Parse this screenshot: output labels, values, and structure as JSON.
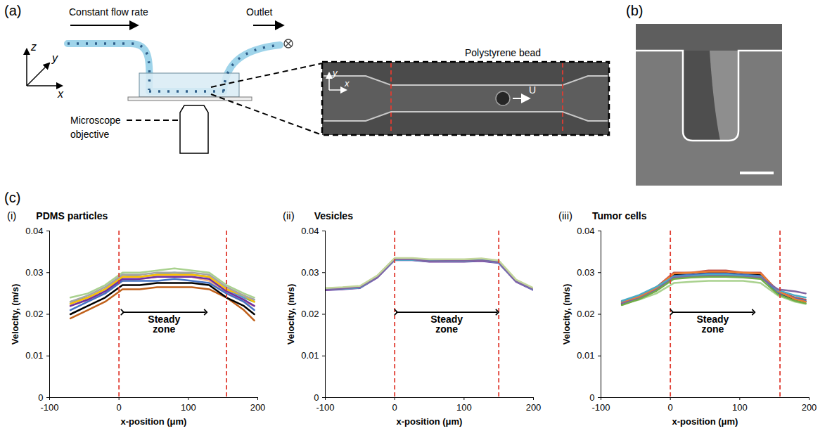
{
  "figure": {
    "a": {
      "letter": "(a)",
      "axis_labels": [
        "x",
        "y",
        "z"
      ],
      "inlet_label": "Constant flow rate",
      "outlet_label": "Outlet",
      "objective_label": "Microscope objective",
      "inset_label": "Polystyrene bead",
      "inset_axis_labels": [
        "x",
        "y"
      ],
      "velocity_label": "U"
    },
    "b": {
      "letter": "(b)"
    },
    "c": {
      "letter": "(c)"
    }
  },
  "chart_data": [
    {
      "type": "line",
      "panel_label": "(i)",
      "title": "PDMS particles",
      "xlabel": "x-position (μm)",
      "ylabel": "Velocity, (m/s)",
      "xlim": [
        -100,
        200
      ],
      "xticks": [
        -100,
        0,
        100,
        200
      ],
      "ylim": [
        0,
        0.04
      ],
      "yticks": [
        0,
        0.01,
        0.02,
        0.03,
        0.04
      ],
      "grid": false,
      "reference_lines": {
        "x": [
          0,
          155
        ],
        "color": "#e03c31",
        "line_style": "dashed"
      },
      "annotations": [
        {
          "text": "Steady zone",
          "x1": 5,
          "x2": 125,
          "y": 0.0205
        }
      ],
      "x": [
        -70,
        -45,
        -20,
        5,
        30,
        55,
        80,
        105,
        130,
        155,
        180,
        195
      ],
      "series": [
        {
          "color": "#c0601a",
          "values": [
            0.019,
            0.021,
            0.023,
            0.026,
            0.026,
            0.0265,
            0.0265,
            0.0265,
            0.026,
            0.024,
            0.021,
            0.0185
          ]
        },
        {
          "color": "#000000",
          "values": [
            0.02,
            0.022,
            0.024,
            0.027,
            0.027,
            0.0275,
            0.0275,
            0.0275,
            0.027,
            0.024,
            0.022,
            0.02
          ]
        },
        {
          "color": "#70ad47",
          "values": [
            0.023,
            0.024,
            0.026,
            0.029,
            0.029,
            0.0295,
            0.0295,
            0.0295,
            0.029,
            0.026,
            0.024,
            0.023
          ]
        },
        {
          "color": "#a9d18e",
          "values": [
            0.024,
            0.025,
            0.027,
            0.03,
            0.03,
            0.0305,
            0.031,
            0.0305,
            0.03,
            0.027,
            0.025,
            0.024
          ]
        },
        {
          "color": "#f4b183",
          "values": [
            0.022,
            0.0235,
            0.025,
            0.028,
            0.0285,
            0.029,
            0.029,
            0.029,
            0.028,
            0.025,
            0.023,
            0.022
          ]
        },
        {
          "color": "#5b9bd5",
          "values": [
            0.0225,
            0.024,
            0.026,
            0.0295,
            0.029,
            0.0295,
            0.03,
            0.0295,
            0.029,
            0.026,
            0.024,
            0.0235
          ]
        },
        {
          "color": "#4472c4",
          "values": [
            0.021,
            0.023,
            0.025,
            0.028,
            0.028,
            0.028,
            0.0285,
            0.028,
            0.0275,
            0.025,
            0.023,
            0.021
          ]
        },
        {
          "color": "#7030a0",
          "values": [
            0.022,
            0.0235,
            0.0255,
            0.0285,
            0.0285,
            0.029,
            0.029,
            0.029,
            0.0285,
            0.0255,
            0.0235,
            0.022
          ]
        },
        {
          "color": "#ffc000",
          "values": [
            0.0225,
            0.024,
            0.026,
            0.029,
            0.029,
            0.0295,
            0.0295,
            0.0295,
            0.029,
            0.026,
            0.0245,
            0.023
          ]
        },
        {
          "color": "#a5a5a5",
          "values": [
            0.023,
            0.0245,
            0.0265,
            0.0295,
            0.0295,
            0.03,
            0.03,
            0.03,
            0.0295,
            0.0265,
            0.0245,
            0.0235
          ]
        }
      ]
    },
    {
      "type": "line",
      "panel_label": "(ii)",
      "title": "Vesicles",
      "xlabel": "x-position (μm)",
      "ylabel": "Velocity, (m/s)",
      "xlim": [
        -100,
        200
      ],
      "xticks": [
        -100,
        0,
        100,
        200
      ],
      "ylim": [
        0,
        0.04
      ],
      "yticks": [
        0,
        0.01,
        0.02,
        0.03,
        0.04
      ],
      "grid": false,
      "reference_lines": {
        "x": [
          0,
          150
        ],
        "color": "#e03c31",
        "line_style": "dashed"
      },
      "annotations": [
        {
          "text": "Steady zone",
          "x1": 2,
          "x2": 148,
          "y": 0.0205
        }
      ],
      "x": [
        -100,
        -75,
        -50,
        -25,
        0,
        25,
        50,
        75,
        100,
        125,
        150,
        175,
        200
      ],
      "series": [
        {
          "color": "#70ad47",
          "values": [
            0.026,
            0.0262,
            0.0265,
            0.029,
            0.0332,
            0.0333,
            0.0329,
            0.0329,
            0.0329,
            0.0331,
            0.0326,
            0.028,
            0.026
          ]
        },
        {
          "color": "#a9d18e",
          "values": [
            0.0262,
            0.0264,
            0.0267,
            0.0292,
            0.0334,
            0.0334,
            0.0331,
            0.0331,
            0.0331,
            0.0333,
            0.0328,
            0.0282,
            0.0262
          ]
        },
        {
          "color": "#7030a0",
          "values": [
            0.0258,
            0.026,
            0.0263,
            0.0288,
            0.033,
            0.033,
            0.0326,
            0.0326,
            0.0326,
            0.0328,
            0.0323,
            0.0278,
            0.0258
          ]
        },
        {
          "color": "#5b9bd5",
          "values": [
            0.0259,
            0.0261,
            0.0264,
            0.0289,
            0.0331,
            0.0331,
            0.0327,
            0.0327,
            0.0327,
            0.0329,
            0.0324,
            0.0279,
            0.0259
          ]
        },
        {
          "color": "#9bbb59",
          "values": [
            0.0261,
            0.0263,
            0.0266,
            0.0291,
            0.0333,
            0.0332,
            0.0329,
            0.0328,
            0.0328,
            0.0331,
            0.0327,
            0.0281,
            0.0261
          ]
        },
        {
          "color": "#4bacc6",
          "values": [
            0.026,
            0.0261,
            0.0264,
            0.029,
            0.0331,
            0.0331,
            0.0328,
            0.0327,
            0.0327,
            0.033,
            0.0325,
            0.028,
            0.026
          ]
        },
        {
          "color": "#8064a2",
          "values": [
            0.0259,
            0.0262,
            0.0265,
            0.0289,
            0.0332,
            0.0332,
            0.0327,
            0.0328,
            0.0328,
            0.0329,
            0.0325,
            0.0279,
            0.026
          ]
        },
        {
          "color": "#c3d69b",
          "values": [
            0.0263,
            0.0265,
            0.0268,
            0.0293,
            0.0335,
            0.0335,
            0.0332,
            0.0332,
            0.0332,
            0.0334,
            0.0329,
            0.0283,
            0.0263
          ]
        }
      ]
    },
    {
      "type": "line",
      "panel_label": "(iii)",
      "title": "Tumor cells",
      "xlabel": "x-position (μm)",
      "ylabel": "Velocity, (m/s)",
      "xlim": [
        -100,
        200
      ],
      "xticks": [
        -100,
        0,
        100,
        200
      ],
      "ylim": [
        0,
        0.04
      ],
      "yticks": [
        0,
        0.01,
        0.02,
        0.03,
        0.04
      ],
      "grid": false,
      "reference_lines": {
        "x": [
          0,
          158
        ],
        "color": "#e03c31",
        "line_style": "dashed"
      },
      "annotations": [
        {
          "text": "Steady zone",
          "x1": 2,
          "x2": 120,
          "y": 0.0205
        }
      ],
      "x": [
        -70,
        -45,
        -20,
        5,
        30,
        55,
        80,
        105,
        130,
        155,
        180,
        195
      ],
      "series": [
        {
          "color": "#a9d18e",
          "values": [
            0.0225,
            0.0235,
            0.025,
            0.0275,
            0.0278,
            0.028,
            0.028,
            0.028,
            0.0275,
            0.0245,
            0.023,
            0.0225
          ]
        },
        {
          "color": "#c0504d",
          "values": [
            0.023,
            0.0245,
            0.0265,
            0.03,
            0.03,
            0.0305,
            0.0305,
            0.03,
            0.03,
            0.0255,
            0.024,
            0.0235
          ]
        },
        {
          "color": "#000000",
          "values": [
            0.0225,
            0.024,
            0.026,
            0.0295,
            0.0295,
            0.03,
            0.03,
            0.0295,
            0.0295,
            0.025,
            0.0235,
            0.023
          ]
        },
        {
          "color": "#4472c4",
          "values": [
            0.023,
            0.024,
            0.0262,
            0.0292,
            0.0295,
            0.0298,
            0.0298,
            0.0295,
            0.0292,
            0.0252,
            0.0238,
            0.0232
          ]
        },
        {
          "color": "#ed7d31",
          "values": [
            0.0228,
            0.0242,
            0.0263,
            0.0298,
            0.03,
            0.0302,
            0.0302,
            0.03,
            0.0298,
            0.0256,
            0.0236,
            0.023
          ]
        },
        {
          "color": "#4bacc6",
          "values": [
            0.0232,
            0.0246,
            0.0266,
            0.029,
            0.0292,
            0.0295,
            0.0295,
            0.0292,
            0.029,
            0.0258,
            0.0245,
            0.024
          ]
        },
        {
          "color": "#8064a2",
          "values": [
            0.0226,
            0.0238,
            0.0258,
            0.0288,
            0.029,
            0.0292,
            0.0292,
            0.029,
            0.0288,
            0.026,
            0.0255,
            0.025
          ]
        },
        {
          "color": "#70ad47",
          "values": [
            0.0222,
            0.0236,
            0.0256,
            0.0285,
            0.0288,
            0.029,
            0.029,
            0.0288,
            0.0285,
            0.0248,
            0.0232,
            0.0226
          ]
        }
      ]
    }
  ]
}
